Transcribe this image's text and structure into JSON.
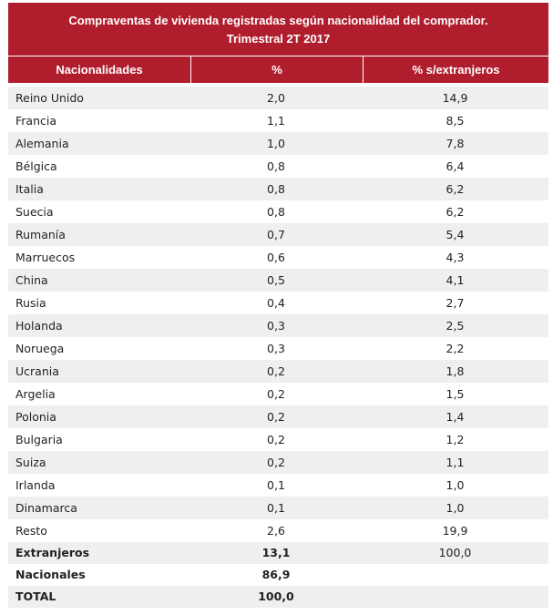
{
  "title": {
    "line1": "Compraventas de vivienda registradas según nacionalidad del comprador.",
    "line2": "Trimestral 2T 2017"
  },
  "columns": [
    "Nacionalidades",
    "%",
    "% s/extranjeros"
  ],
  "rows": [
    {
      "name": "Reino Unido",
      "pct": "2,0",
      "pct_ext": "14,9"
    },
    {
      "name": "Francia",
      "pct": "1,1",
      "pct_ext": "8,5"
    },
    {
      "name": "Alemania",
      "pct": "1,0",
      "pct_ext": "7,8"
    },
    {
      "name": "Bélgica",
      "pct": "0,8",
      "pct_ext": "6,4"
    },
    {
      "name": "Italia",
      "pct": "0,8",
      "pct_ext": "6,2"
    },
    {
      "name": "Suecia",
      "pct": "0,8",
      "pct_ext": "6,2"
    },
    {
      "name": "Rumanía",
      "pct": "0,7",
      "pct_ext": "5,4"
    },
    {
      "name": "Marruecos",
      "pct": "0,6",
      "pct_ext": "4,3"
    },
    {
      "name": "China",
      "pct": "0,5",
      "pct_ext": "4,1"
    },
    {
      "name": "Rusia",
      "pct": "0,4",
      "pct_ext": "2,7"
    },
    {
      "name": "Holanda",
      "pct": "0,3",
      "pct_ext": "2,5"
    },
    {
      "name": "Noruega",
      "pct": "0,3",
      "pct_ext": "2,2"
    },
    {
      "name": "Ucrania",
      "pct": "0,2",
      "pct_ext": "1,8"
    },
    {
      "name": "Argelia",
      "pct": "0,2",
      "pct_ext": "1,5"
    },
    {
      "name": "Polonia",
      "pct": "0,2",
      "pct_ext": "1,4"
    },
    {
      "name": "Bulgaria",
      "pct": "0,2",
      "pct_ext": "1,2"
    },
    {
      "name": "Suiza",
      "pct": "0,2",
      "pct_ext": "1,1"
    },
    {
      "name": "Irlanda",
      "pct": "0,1",
      "pct_ext": "1,0"
    },
    {
      "name": "Dinamarca",
      "pct": "0,1",
      "pct_ext": "1,0"
    },
    {
      "name": "Resto",
      "pct": "2,6",
      "pct_ext": "19,9"
    }
  ],
  "summary": [
    {
      "name": "Extranjeros",
      "pct": "13,1",
      "pct_ext": "100,0"
    },
    {
      "name": "Nacionales",
      "pct": "86,9",
      "pct_ext": ""
    },
    {
      "name": "TOTAL",
      "pct": "100,0",
      "pct_ext": ""
    }
  ],
  "colors": {
    "header_bg": "#b01e2e",
    "header_text": "#ffffff",
    "stripe": "#efefef"
  }
}
